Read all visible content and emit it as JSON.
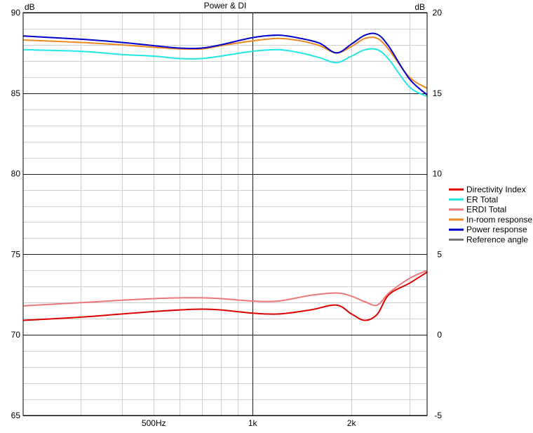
{
  "chart_data": {
    "type": "line",
    "title": "Power & DI",
    "x_scale": "log",
    "x_range_hz": [
      200,
      3400
    ],
    "x_tick_values": [
      500,
      1000,
      2000
    ],
    "x_tick_labels": [
      "500Hz",
      "1k",
      "2k"
    ],
    "x_minor_gridlines_hz": [
      300,
      400,
      500,
      600,
      700,
      800,
      900,
      2000,
      3000
    ],
    "y_left": {
      "unit_label": "dB",
      "range": [
        65,
        90
      ],
      "ticks": [
        65,
        70,
        75,
        80,
        85,
        90
      ],
      "tick_labels": [
        "65",
        "70",
        "75",
        "80",
        "85",
        "90"
      ]
    },
    "y_right": {
      "unit_label": "dB",
      "range": [
        -5,
        20
      ],
      "ticks": [
        -5,
        0,
        5,
        10,
        15,
        20
      ],
      "tick_labels": [
        "-5",
        "0",
        "5",
        "10",
        "15",
        "20"
      ]
    },
    "legend_position": "right",
    "grid": true,
    "series": [
      {
        "name": "Directivity Index",
        "color": "#dd0000",
        "axis": "right",
        "points": [
          [
            200,
            0.9
          ],
          [
            300,
            1.1
          ],
          [
            400,
            1.3
          ],
          [
            500,
            1.45
          ],
          [
            600,
            1.55
          ],
          [
            700,
            1.6
          ],
          [
            800,
            1.55
          ],
          [
            1000,
            1.35
          ],
          [
            1200,
            1.3
          ],
          [
            1500,
            1.55
          ],
          [
            1800,
            1.85
          ],
          [
            2000,
            1.3
          ],
          [
            2200,
            0.9
          ],
          [
            2400,
            1.3
          ],
          [
            2600,
            2.5
          ],
          [
            3000,
            3.2
          ],
          [
            3400,
            3.9
          ]
        ]
      },
      {
        "name": "ER Total",
        "color": "#22e6e6",
        "axis": "left",
        "points": [
          [
            200,
            87.7
          ],
          [
            300,
            87.6
          ],
          [
            400,
            87.4
          ],
          [
            500,
            87.3
          ],
          [
            600,
            87.15
          ],
          [
            700,
            87.15
          ],
          [
            800,
            87.3
          ],
          [
            1000,
            87.6
          ],
          [
            1200,
            87.7
          ],
          [
            1400,
            87.5
          ],
          [
            1600,
            87.2
          ],
          [
            1800,
            86.9
          ],
          [
            2000,
            87.3
          ],
          [
            2200,
            87.7
          ],
          [
            2400,
            87.7
          ],
          [
            2600,
            87.1
          ],
          [
            3000,
            85.4
          ],
          [
            3400,
            84.8
          ]
        ]
      },
      {
        "name": "ERDI Total",
        "color": "#ee7777",
        "axis": "right",
        "points": [
          [
            200,
            1.8
          ],
          [
            300,
            2.0
          ],
          [
            400,
            2.15
          ],
          [
            500,
            2.25
          ],
          [
            600,
            2.3
          ],
          [
            700,
            2.3
          ],
          [
            800,
            2.25
          ],
          [
            1000,
            2.1
          ],
          [
            1200,
            2.1
          ],
          [
            1500,
            2.45
          ],
          [
            1800,
            2.6
          ],
          [
            2000,
            2.4
          ],
          [
            2200,
            2.05
          ],
          [
            2400,
            1.85
          ],
          [
            2600,
            2.6
          ],
          [
            3000,
            3.5
          ],
          [
            3400,
            4.0
          ]
        ]
      },
      {
        "name": "In-room response",
        "color": "#ee8822",
        "axis": "left",
        "points": [
          [
            200,
            88.3
          ],
          [
            300,
            88.15
          ],
          [
            400,
            88.0
          ],
          [
            500,
            87.85
          ],
          [
            600,
            87.75
          ],
          [
            700,
            87.75
          ],
          [
            800,
            87.95
          ],
          [
            1000,
            88.25
          ],
          [
            1200,
            88.4
          ],
          [
            1400,
            88.25
          ],
          [
            1600,
            87.95
          ],
          [
            1800,
            87.5
          ],
          [
            2000,
            87.9
          ],
          [
            2200,
            88.4
          ],
          [
            2400,
            88.4
          ],
          [
            2600,
            87.7
          ],
          [
            3000,
            86.0
          ],
          [
            3400,
            85.3
          ]
        ]
      },
      {
        "name": "Power response",
        "color": "#0000cc",
        "axis": "left",
        "points": [
          [
            200,
            88.55
          ],
          [
            300,
            88.35
          ],
          [
            400,
            88.15
          ],
          [
            500,
            87.95
          ],
          [
            600,
            87.8
          ],
          [
            700,
            87.8
          ],
          [
            800,
            88.0
          ],
          [
            1000,
            88.45
          ],
          [
            1200,
            88.6
          ],
          [
            1400,
            88.4
          ],
          [
            1600,
            88.1
          ],
          [
            1800,
            87.5
          ],
          [
            2000,
            88.05
          ],
          [
            2200,
            88.6
          ],
          [
            2400,
            88.65
          ],
          [
            2600,
            87.9
          ],
          [
            3000,
            85.9
          ],
          [
            3400,
            84.9
          ]
        ]
      },
      {
        "name": "Reference angle",
        "color": "#777777",
        "axis": "left",
        "points": []
      }
    ]
  }
}
